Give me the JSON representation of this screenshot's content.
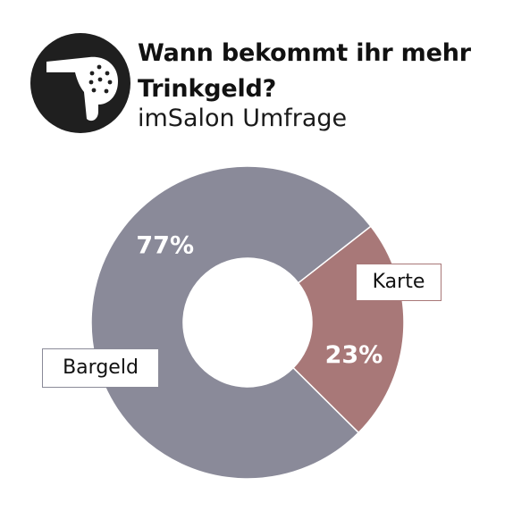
{
  "title": "Wann bekommt ihr mehr Trinkgeld?",
  "subtitle": "imSalon Umfrage",
  "icon": "hair-dryer-icon",
  "colors": {
    "bargeld": "#8a8a99",
    "karte": "#a87878",
    "logo_bg": "#1f1f1f",
    "logo_fg": "#ffffff"
  },
  "chart_data": {
    "type": "pie",
    "donut": true,
    "title": "Wann bekommt ihr mehr Trinkgeld?",
    "subtitle": "imSalon Umfrage",
    "categories": [
      "Karte",
      "Bargeld"
    ],
    "values": [
      23,
      77
    ],
    "value_labels": [
      "23%",
      "77%"
    ],
    "colors": [
      "#a87878",
      "#8a8a99"
    ],
    "start_angle_deg": 52,
    "legend": "callout-labels"
  }
}
